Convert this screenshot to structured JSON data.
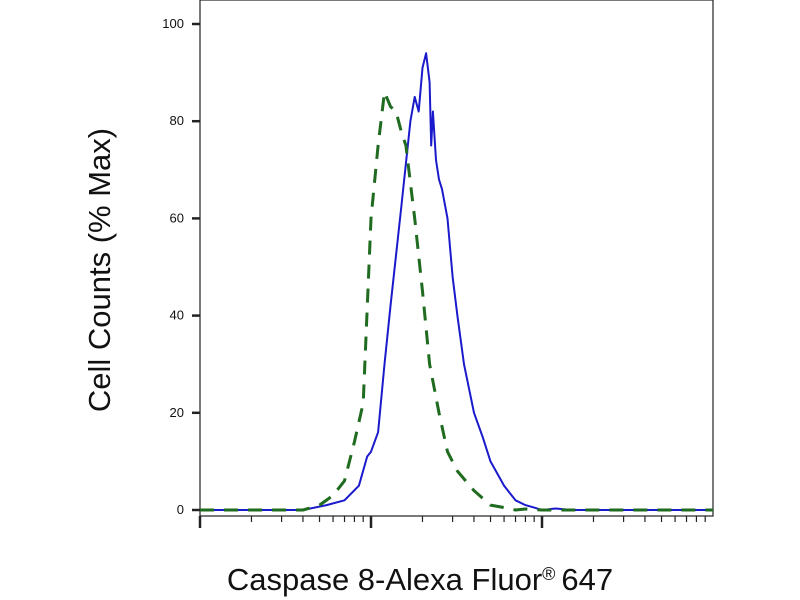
{
  "chart_data": {
    "type": "line",
    "xlabel_main": "Caspase 8-Alexa Fluor",
    "xlabel_registered": "®",
    "xlabel_suffix": "647",
    "ylabel": "Cell Counts (% Max)",
    "xscale": "log",
    "xlim": [
      10,
      10000
    ],
    "ylim": [
      0,
      100
    ],
    "yticks": [
      0,
      20,
      40,
      60,
      80,
      100
    ],
    "ytick_labels": [
      "0",
      "20",
      "40",
      "60",
      "80",
      "100"
    ],
    "xmajor_ticks": [
      10,
      100,
      1000
    ],
    "legend": "none",
    "grid": false,
    "series": [
      {
        "color": "#1a1acc",
        "line_style": "solid",
        "x": [
          10,
          40,
          55,
          70,
          85,
          95,
          100,
          110,
          120,
          130,
          150,
          170,
          180,
          190,
          200,
          210,
          220,
          225,
          230,
          240,
          250,
          260,
          280,
          300,
          320,
          350,
          400,
          450,
          500,
          600,
          700,
          800,
          900,
          1000,
          1200,
          1500,
          2000,
          10000
        ],
        "y": [
          0,
          0,
          1,
          2,
          5,
          11,
          12,
          16,
          30,
          42,
          62,
          80,
          85,
          82,
          91,
          94,
          88,
          75,
          82,
          72,
          68,
          66,
          60,
          48,
          40,
          30,
          20,
          15,
          10,
          5,
          2,
          1,
          0.5,
          0,
          0.3,
          0,
          0,
          0
        ]
      },
      {
        "color": "#1f6b1f",
        "line_style": "dashed",
        "x": [
          10,
          40,
          50,
          60,
          70,
          80,
          90,
          100,
          110,
          120,
          130,
          140,
          150,
          160,
          180,
          200,
          220,
          250,
          280,
          320,
          400,
          500,
          600,
          700,
          800,
          1000,
          10000
        ],
        "y": [
          0,
          0,
          1,
          3,
          6,
          14,
          22,
          60,
          75,
          86,
          83,
          82,
          78,
          75,
          60,
          45,
          30,
          20,
          12,
          8,
          4,
          1,
          0.5,
          0,
          0.2,
          0,
          0
        ]
      }
    ]
  }
}
